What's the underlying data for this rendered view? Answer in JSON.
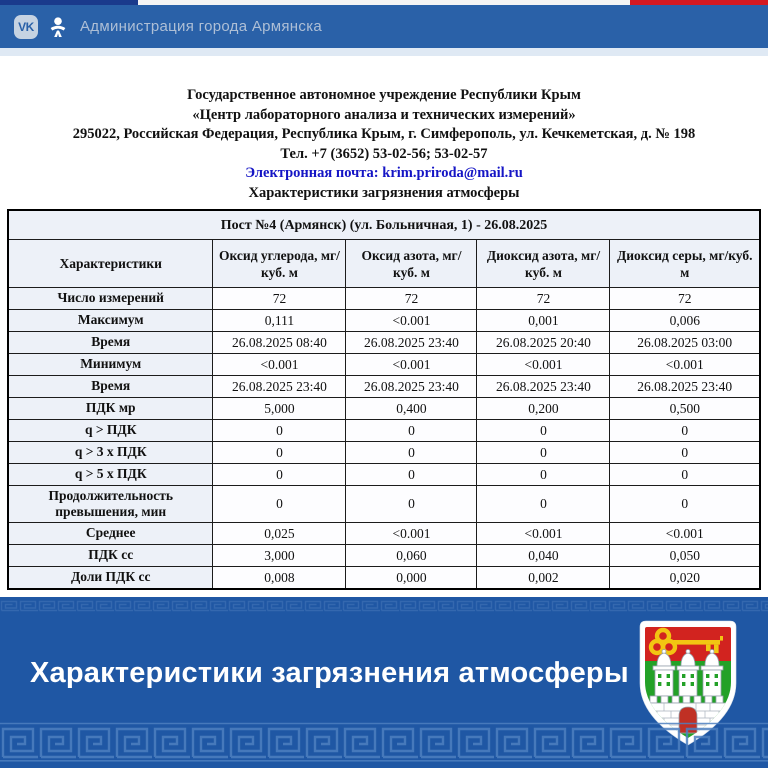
{
  "flag_strip": {
    "left_color": "#1a3a8c",
    "mid_color": "#f4f4f4",
    "right_color": "#d41920"
  },
  "topbar": {
    "bg": "#2a61a8",
    "vk_label": "VK",
    "icons": [
      "vk-icon",
      "ok-icon"
    ],
    "title": "Администрация города Армянска"
  },
  "letterhead": {
    "line1": "Государственное автономное учреждение Республики Крым",
    "line2": "«Центр лабораторного анализа и технических измерений»",
    "line3": "295022, Российская Федерация, Республика Крым, г. Симферополь, ул. Кечкеметская, д. № 198",
    "line4": "Тел. +7 (3652) 53-02-56; 53-02-57",
    "line5": "Электронная почта: krim.priroda@mail.ru",
    "line6": "Характеристики загрязнения атмосферы",
    "email_color": "#1515c5"
  },
  "table": {
    "title": "Пост №4 (Армянск) (ул. Больничная, 1) - 26.08.2025",
    "columns": [
      "Характеристики",
      "Оксид углерода, мг/куб. м",
      "Оксид азота, мг/куб. м",
      "Диоксид азота, мг/куб. м",
      "Диоксид серы, мг/куб. м"
    ],
    "rows": [
      {
        "label": "Число измерений",
        "values": [
          "72",
          "72",
          "72",
          "72"
        ]
      },
      {
        "label": "Максимум",
        "values": [
          "0,111",
          "<0.001",
          "0,001",
          "0,006"
        ]
      },
      {
        "label": "Время",
        "values": [
          "26.08.2025 08:40",
          "26.08.2025 23:40",
          "26.08.2025 20:40",
          "26.08.2025 03:00"
        ]
      },
      {
        "label": "Минимум",
        "values": [
          "<0.001",
          "<0.001",
          "<0.001",
          "<0.001"
        ]
      },
      {
        "label": "Время",
        "values": [
          "26.08.2025 23:40",
          "26.08.2025 23:40",
          "26.08.2025 23:40",
          "26.08.2025 23:40"
        ]
      },
      {
        "label": "ПДК мр",
        "values": [
          "5,000",
          "0,400",
          "0,200",
          "0,500"
        ]
      },
      {
        "label": "q > ПДК",
        "values": [
          "0",
          "0",
          "0",
          "0"
        ]
      },
      {
        "label": "q > 3 x ПДК",
        "values": [
          "0",
          "0",
          "0",
          "0"
        ]
      },
      {
        "label": "q > 5 x ПДК",
        "values": [
          "0",
          "0",
          "0",
          "0"
        ]
      },
      {
        "label": "Продолжительность превышения, мин",
        "values": [
          "0",
          "0",
          "0",
          "0"
        ]
      },
      {
        "label": "Среднее",
        "values": [
          "0,025",
          "<0.001",
          "<0.001",
          "<0.001"
        ]
      },
      {
        "label": "ПДК сс",
        "values": [
          "3,000",
          "0,060",
          "0,040",
          "0,050"
        ]
      },
      {
        "label": "Доли ПДК сс",
        "values": [
          "0,008",
          "0,000",
          "0,002",
          "0,020"
        ]
      }
    ]
  },
  "banner": {
    "title": "Характеристики загрязнения атмосферы",
    "bg": "#1f57a4",
    "pattern": "greek-meander",
    "emblem": {
      "name": "armyansk-coat-of-arms",
      "chief_color": "#d2231f",
      "field_color": "#23a127",
      "key_color": "#f2c512",
      "fortress_color": "#ffffff"
    }
  }
}
